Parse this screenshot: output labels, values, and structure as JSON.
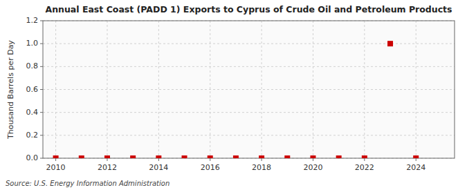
{
  "chart_data": {
    "type": "scatter",
    "title": "Annual East Coast (PADD 1) Exports to Cyprus of Crude Oil and Petroleum Products",
    "y_label": "Thousand Barrels per Day",
    "annotations": [
      "Source: U.S. Energy Information Administration"
    ],
    "x": [
      2010,
      2011,
      2012,
      2013,
      2014,
      2015,
      2016,
      2017,
      2018,
      2019,
      2020,
      2021,
      2022,
      2023,
      2024
    ],
    "values": [
      0.0,
      0.0,
      0.0,
      0.0,
      0.0,
      0.0,
      0.0,
      0.0,
      0.0,
      0.0,
      0.0,
      0.0,
      0.0,
      1.0,
      0.0
    ],
    "color": "#cc0000",
    "marker": "square",
    "xlim": [
      2009.5,
      2025.5
    ],
    "ylim": [
      0.0,
      1.2
    ],
    "xticks": [
      2010,
      2012,
      2014,
      2016,
      2018,
      2020,
      2022,
      2024
    ],
    "yticks": [
      {
        "value": 0.0,
        "label": "0.0"
      },
      0.2,
      0.4,
      0.6,
      0.8,
      {
        "value": 1.0,
        "label": "1.0"
      },
      1.2
    ],
    "grid": true
  }
}
